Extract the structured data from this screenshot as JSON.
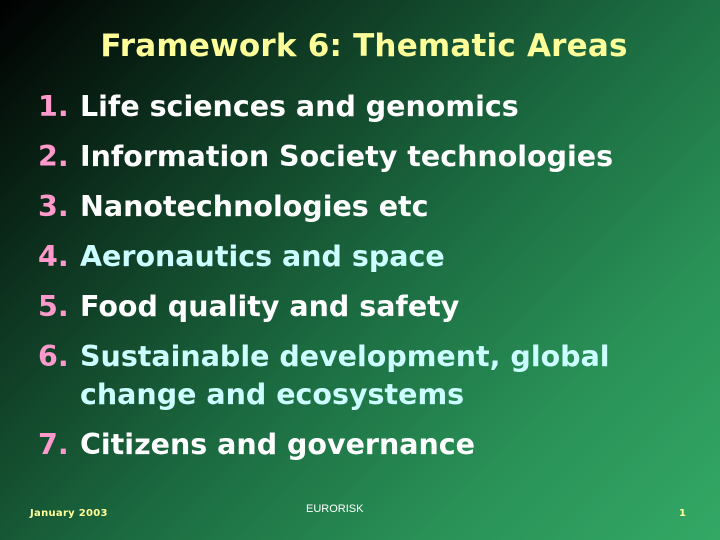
{
  "slide": {
    "title": "Framework 6: Thematic Areas",
    "items": [
      {
        "number": "1.",
        "text": "Life sciences and genomics"
      },
      {
        "number": "2.",
        "text": "Information Society technologies"
      },
      {
        "number": "3.",
        "text": "Nanotechnologies etc"
      },
      {
        "number": "4.",
        "text": "Aeronautics and space"
      },
      {
        "number": "5.",
        "text": "Food quality and safety"
      },
      {
        "number": "6.",
        "text": "Sustainable development, global change and ecosystems"
      },
      {
        "number": "7.",
        "text": "Citizens and governance"
      }
    ],
    "footer": {
      "date": "January 2003",
      "center": "EURORISK",
      "page_number": "1"
    }
  },
  "colors": {
    "title": "#ffff99",
    "number": "#ff99cc",
    "text_white": "#ffffff",
    "text_cyan": "#ccffff",
    "background_start": "#000000",
    "background_end": "#33a865"
  }
}
